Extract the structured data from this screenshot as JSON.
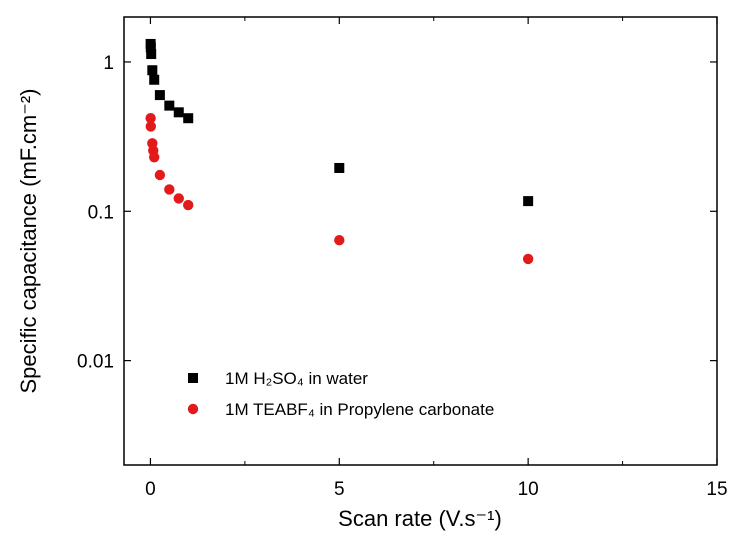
{
  "chart_data": {
    "type": "scatter",
    "title": "",
    "xlabel": "Scan rate (V.s⁻¹)",
    "ylabel": "Specific capacitance (mF.cm⁻²)",
    "xlim": [
      -0.7,
      15
    ],
    "ylim": [
      0.002,
      2
    ],
    "yscale": "log",
    "x_ticks": [
      0,
      5,
      10,
      15
    ],
    "x_tick_labels": [
      "0",
      "5",
      "10",
      "15"
    ],
    "y_ticks": [
      0.01,
      0.1,
      1
    ],
    "y_tick_labels": [
      "0.01",
      "0.1",
      "1"
    ],
    "grid": false,
    "legend_position": "bottom-left",
    "series": [
      {
        "name": "1M H₂SO₄ in water",
        "marker": "square",
        "color": "#000000",
        "points": [
          [
            0.005,
            1.32
          ],
          [
            0.01,
            1.25
          ],
          [
            0.02,
            1.13
          ],
          [
            0.05,
            0.88
          ],
          [
            0.1,
            0.76
          ],
          [
            0.25,
            0.6
          ],
          [
            0.5,
            0.51
          ],
          [
            0.75,
            0.46
          ],
          [
            1.0,
            0.42
          ],
          [
            5.0,
            0.195
          ],
          [
            10.0,
            0.117
          ]
        ]
      },
      {
        "name": "1M TEABF₄ in Propylene carbonate",
        "marker": "circle",
        "color": "#e31a1c",
        "points": [
          [
            0.005,
            0.42
          ],
          [
            0.01,
            0.37
          ],
          [
            0.05,
            0.285
          ],
          [
            0.075,
            0.255
          ],
          [
            0.1,
            0.23
          ],
          [
            0.25,
            0.175
          ],
          [
            0.5,
            0.14
          ],
          [
            0.75,
            0.122
          ],
          [
            1.0,
            0.11
          ],
          [
            5.0,
            0.064
          ],
          [
            10.0,
            0.048
          ]
        ]
      }
    ]
  }
}
